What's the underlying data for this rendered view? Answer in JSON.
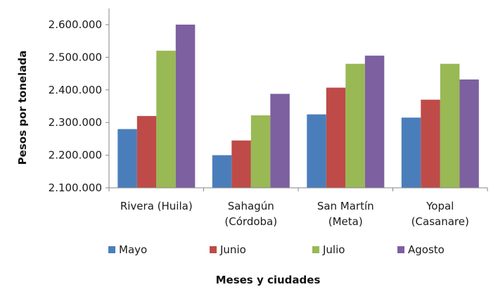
{
  "chart_data": {
    "type": "bar",
    "categories": [
      [
        "Rivera (Huila)"
      ],
      [
        "Sahagún",
        "(Córdoba)"
      ],
      [
        "San Martín",
        "(Meta)"
      ],
      [
        "Yopal",
        "(Casanare)"
      ]
    ],
    "series": [
      {
        "name": "Mayo",
        "color": "#4a7ebb",
        "values": [
          2280000,
          2200000,
          2325000,
          2315000
        ]
      },
      {
        "name": "Junio",
        "color": "#be4b48",
        "values": [
          2320000,
          2245000,
          2407000,
          2370000
        ]
      },
      {
        "name": "Julio",
        "color": "#98b954",
        "values": [
          2520000,
          2322000,
          2480000,
          2480000
        ]
      },
      {
        "name": "Agosto",
        "color": "#7d60a0",
        "values": [
          2600000,
          2388000,
          2505000,
          2432000
        ]
      }
    ],
    "title": "",
    "xlabel": "Meses y ciudades",
    "ylabel": "Pesos por tonelada",
    "ylim": [
      2100000,
      2600000
    ],
    "yticks": [
      2100000,
      2200000,
      2300000,
      2400000,
      2500000,
      2600000
    ],
    "ytick_labels": [
      "2.100.000",
      "2.200.000",
      "2.300.000",
      "2.400.000",
      "2.500.000",
      "2.600.000"
    ],
    "grid": false,
    "legend_position": "bottom"
  }
}
